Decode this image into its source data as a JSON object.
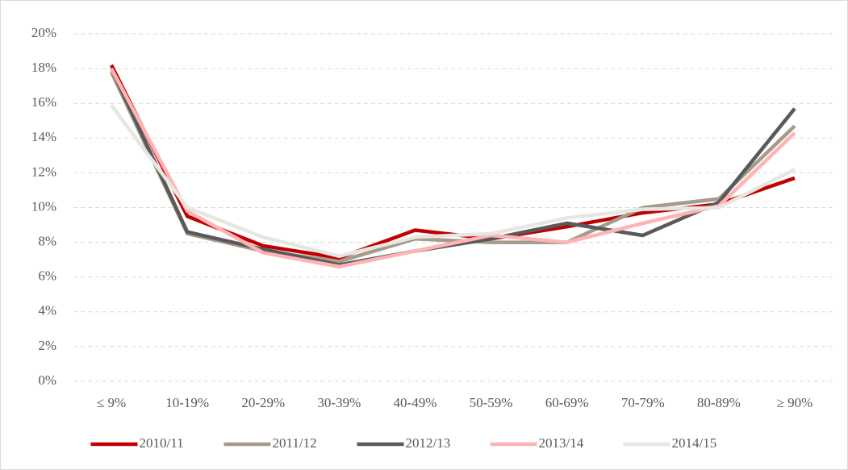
{
  "chart_data": {
    "type": "line",
    "categories": [
      "≤ 9%",
      "10-19%",
      "20-29%",
      "30-39%",
      "40-49%",
      "50-59%",
      "60-69%",
      "70-79%",
      "80-89%",
      "≥ 90%"
    ],
    "series": [
      {
        "name": "2010/11",
        "color": "#c00000",
        "values": [
          18.2,
          9.5,
          7.8,
          7.1,
          8.7,
          8.2,
          8.9,
          9.7,
          10.2,
          11.7
        ]
      },
      {
        "name": "2011/12",
        "color": "#a39b8b",
        "values": [
          17.8,
          8.5,
          7.5,
          6.9,
          8.2,
          8.0,
          8.0,
          10.0,
          10.5,
          14.7
        ]
      },
      {
        "name": "2012/13",
        "color": "#595959",
        "values": [
          18.0,
          8.6,
          7.6,
          6.7,
          7.5,
          8.2,
          9.1,
          8.4,
          10.3,
          15.7
        ]
      },
      {
        "name": "2013/14",
        "color": "#ffb3b5",
        "values": [
          18.0,
          9.8,
          7.4,
          6.6,
          7.5,
          8.4,
          8.0,
          9.1,
          10.1,
          14.3
        ]
      },
      {
        "name": "2014/15",
        "color": "#e8e6e0",
        "values": [
          15.9,
          10.0,
          8.3,
          7.2,
          8.3,
          8.5,
          9.4,
          9.9,
          10.0,
          12.2
        ]
      }
    ],
    "ylim": [
      0,
      20
    ],
    "yticks": [
      {
        "value": 0,
        "label": "0%"
      },
      {
        "value": 2,
        "label": "2%"
      },
      {
        "value": 4,
        "label": "4%"
      },
      {
        "value": 6,
        "label": "6%"
      },
      {
        "value": 8,
        "label": "8%"
      },
      {
        "value": 10,
        "label": "10%"
      },
      {
        "value": 12,
        "label": "12%"
      },
      {
        "value": 14,
        "label": "14%"
      },
      {
        "value": 16,
        "label": "16%"
      },
      {
        "value": 18,
        "label": "18%"
      },
      {
        "value": 20,
        "label": "20%"
      }
    ],
    "grid": true,
    "legend": "bottom"
  }
}
